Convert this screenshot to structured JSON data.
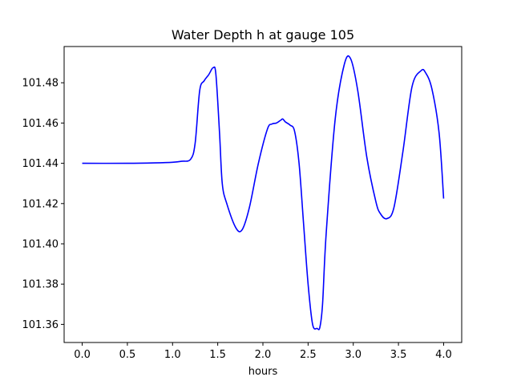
{
  "chart_data": {
    "type": "line",
    "title": "Water Depth h at gauge 105",
    "xlabel": "hours",
    "ylabel": "",
    "xlim": [
      -0.2,
      4.2
    ],
    "ylim": [
      101.351,
      101.498
    ],
    "grid": false,
    "x_ticks": [
      0.0,
      0.5,
      1.0,
      1.5,
      2.0,
      2.5,
      3.0,
      3.5,
      4.0
    ],
    "x_tick_labels": [
      "0.0",
      "0.5",
      "1.0",
      "1.5",
      "2.0",
      "2.5",
      "3.0",
      "3.5",
      "4.0"
    ],
    "y_ticks": [
      101.36,
      101.38,
      101.4,
      101.42,
      101.44,
      101.46,
      101.48
    ],
    "y_tick_labels": [
      "101.36",
      "101.38",
      "101.40",
      "101.42",
      "101.44",
      "101.46",
      "101.48"
    ],
    "series": [
      {
        "color": "#0000ff",
        "x": [
          0.0,
          0.5,
          0.8,
          1.0,
          1.1,
          1.2,
          1.25,
          1.3,
          1.35,
          1.4,
          1.45,
          1.48,
          1.52,
          1.55,
          1.6,
          1.7,
          1.77,
          1.85,
          1.95,
          2.05,
          2.1,
          2.15,
          2.2,
          2.22,
          2.25,
          2.3,
          2.35,
          2.4,
          2.45,
          2.5,
          2.55,
          2.6,
          2.63,
          2.66,
          2.7,
          2.8,
          2.9,
          2.97,
          3.05,
          3.15,
          3.25,
          3.3,
          3.37,
          3.45,
          3.55,
          3.65,
          3.75,
          3.8,
          3.87,
          3.95,
          4.0
        ],
        "values": [
          101.44,
          101.44,
          101.4402,
          101.4405,
          101.441,
          101.442,
          101.45,
          101.476,
          101.481,
          101.484,
          101.4875,
          101.484,
          101.455,
          101.43,
          101.42,
          101.408,
          101.407,
          101.418,
          101.44,
          101.457,
          101.4595,
          101.46,
          101.4615,
          101.462,
          101.4605,
          101.459,
          101.456,
          101.44,
          101.41,
          101.38,
          101.36,
          101.358,
          101.3585,
          101.37,
          101.405,
          101.462,
          101.489,
          101.492,
          101.476,
          101.443,
          101.421,
          101.415,
          101.4125,
          101.418,
          101.446,
          101.478,
          101.486,
          101.485,
          101.477,
          101.455,
          101.4225
        ]
      }
    ]
  }
}
